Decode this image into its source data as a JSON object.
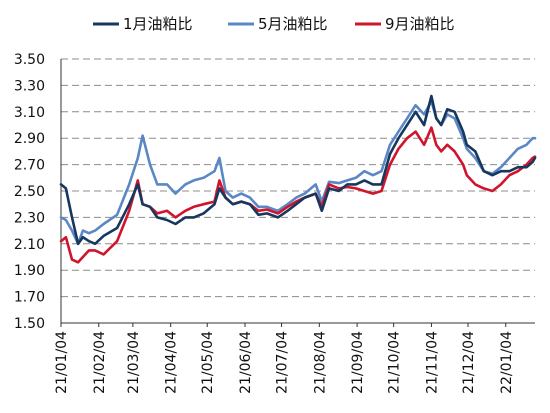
{
  "chart_data": {
    "type": "line",
    "title": "",
    "xlabel": "",
    "ylabel": "",
    "ylim": [
      1.5,
      3.5
    ],
    "y_ticks": [
      "3.50",
      "3.30",
      "3.10",
      "2.90",
      "2.70",
      "2.50",
      "2.30",
      "2.10",
      "1.90",
      "1.70",
      "1.50"
    ],
    "x_ticks": [
      "21/01/04",
      "21/02/04",
      "21/03/04",
      "21/04/04",
      "21/05/04",
      "21/06/04",
      "21/07/04",
      "21/08/04",
      "21/09/04",
      "21/10/04",
      "21/11/04",
      "21/12/04",
      "22/01/04"
    ],
    "grid": "horizontal dashed",
    "legend_position": "top",
    "x_range": [
      "2021-01-04",
      "2022-01-28"
    ],
    "series": [
      {
        "name": "1月油粕比",
        "color": "#17375e",
        "points": [
          [
            "2021-01-04",
            2.55
          ],
          [
            "2021-01-08",
            2.52
          ],
          [
            "2021-01-13",
            2.3
          ],
          [
            "2021-01-18",
            2.1
          ],
          [
            "2021-01-22",
            2.15
          ],
          [
            "2021-01-27",
            2.12
          ],
          [
            "2021-02-01",
            2.1
          ],
          [
            "2021-02-08",
            2.16
          ],
          [
            "2021-02-19",
            2.22
          ],
          [
            "2021-03-01",
            2.4
          ],
          [
            "2021-03-08",
            2.55
          ],
          [
            "2021-03-12",
            2.4
          ],
          [
            "2021-03-18",
            2.38
          ],
          [
            "2021-03-24",
            2.3
          ],
          [
            "2021-04-01",
            2.28
          ],
          [
            "2021-04-08",
            2.25
          ],
          [
            "2021-04-16",
            2.3
          ],
          [
            "2021-04-23",
            2.3
          ],
          [
            "2021-05-01",
            2.33
          ],
          [
            "2021-05-10",
            2.4
          ],
          [
            "2021-05-14",
            2.52
          ],
          [
            "2021-05-19",
            2.45
          ],
          [
            "2021-05-25",
            2.4
          ],
          [
            "2021-06-01",
            2.42
          ],
          [
            "2021-06-08",
            2.4
          ],
          [
            "2021-06-15",
            2.32
          ],
          [
            "2021-06-22",
            2.33
          ],
          [
            "2021-07-01",
            2.3
          ],
          [
            "2021-07-09",
            2.35
          ],
          [
            "2021-07-16",
            2.4
          ],
          [
            "2021-07-23",
            2.45
          ],
          [
            "2021-08-01",
            2.48
          ],
          [
            "2021-08-06",
            2.35
          ],
          [
            "2021-08-12",
            2.52
          ],
          [
            "2021-08-20",
            2.5
          ],
          [
            "2021-08-27",
            2.55
          ],
          [
            "2021-09-03",
            2.55
          ],
          [
            "2021-09-10",
            2.58
          ],
          [
            "2021-09-17",
            2.55
          ],
          [
            "2021-09-24",
            2.55
          ],
          [
            "2021-10-01",
            2.78
          ],
          [
            "2021-10-08",
            2.9
          ],
          [
            "2021-10-15",
            3.0
          ],
          [
            "2021-10-22",
            3.1
          ],
          [
            "2021-10-29",
            3.0
          ],
          [
            "2021-11-04",
            3.22
          ],
          [
            "2021-11-08",
            3.05
          ],
          [
            "2021-11-12",
            3.0
          ],
          [
            "2021-11-17",
            3.12
          ],
          [
            "2021-11-23",
            3.1
          ],
          [
            "2021-11-30",
            2.95
          ],
          [
            "2021-12-03",
            2.85
          ],
          [
            "2021-12-10",
            2.8
          ],
          [
            "2021-12-17",
            2.65
          ],
          [
            "2021-12-24",
            2.62
          ],
          [
            "2021-12-31",
            2.65
          ],
          [
            "2022-01-07",
            2.65
          ],
          [
            "2022-01-14",
            2.68
          ],
          [
            "2022-01-21",
            2.68
          ],
          [
            "2022-01-26",
            2.72
          ],
          [
            "2022-01-28",
            2.75
          ]
        ]
      },
      {
        "name": "5月油粕比",
        "color": "#5b87c5",
        "points": [
          [
            "2021-01-04",
            2.3
          ],
          [
            "2021-01-08",
            2.28
          ],
          [
            "2021-01-13",
            2.2
          ],
          [
            "2021-01-18",
            2.1
          ],
          [
            "2021-01-22",
            2.2
          ],
          [
            "2021-01-27",
            2.18
          ],
          [
            "2021-02-01",
            2.2
          ],
          [
            "2021-02-08",
            2.25
          ],
          [
            "2021-02-19",
            2.32
          ],
          [
            "2021-03-01",
            2.55
          ],
          [
            "2021-03-08",
            2.75
          ],
          [
            "2021-03-12",
            2.92
          ],
          [
            "2021-03-18",
            2.7
          ],
          [
            "2021-03-24",
            2.55
          ],
          [
            "2021-04-01",
            2.55
          ],
          [
            "2021-04-08",
            2.48
          ],
          [
            "2021-04-16",
            2.55
          ],
          [
            "2021-04-23",
            2.58
          ],
          [
            "2021-05-01",
            2.6
          ],
          [
            "2021-05-10",
            2.65
          ],
          [
            "2021-05-14",
            2.75
          ],
          [
            "2021-05-19",
            2.5
          ],
          [
            "2021-05-25",
            2.45
          ],
          [
            "2021-06-01",
            2.48
          ],
          [
            "2021-06-08",
            2.45
          ],
          [
            "2021-06-15",
            2.38
          ],
          [
            "2021-06-22",
            2.38
          ],
          [
            "2021-07-01",
            2.35
          ],
          [
            "2021-07-09",
            2.4
          ],
          [
            "2021-07-16",
            2.45
          ],
          [
            "2021-07-23",
            2.48
          ],
          [
            "2021-08-01",
            2.55
          ],
          [
            "2021-08-06",
            2.42
          ],
          [
            "2021-08-12",
            2.57
          ],
          [
            "2021-08-20",
            2.56
          ],
          [
            "2021-08-27",
            2.58
          ],
          [
            "2021-09-03",
            2.6
          ],
          [
            "2021-09-10",
            2.65
          ],
          [
            "2021-09-17",
            2.62
          ],
          [
            "2021-09-24",
            2.65
          ],
          [
            "2021-10-01",
            2.85
          ],
          [
            "2021-10-08",
            2.95
          ],
          [
            "2021-10-15",
            3.05
          ],
          [
            "2021-10-22",
            3.15
          ],
          [
            "2021-10-29",
            3.08
          ],
          [
            "2021-11-04",
            3.18
          ],
          [
            "2021-11-08",
            3.05
          ],
          [
            "2021-11-12",
            3.0
          ],
          [
            "2021-11-17",
            3.08
          ],
          [
            "2021-11-23",
            3.05
          ],
          [
            "2021-11-30",
            2.9
          ],
          [
            "2021-12-03",
            2.82
          ],
          [
            "2021-12-10",
            2.75
          ],
          [
            "2021-12-17",
            2.65
          ],
          [
            "2021-12-24",
            2.63
          ],
          [
            "2021-12-31",
            2.68
          ],
          [
            "2022-01-07",
            2.75
          ],
          [
            "2022-01-14",
            2.82
          ],
          [
            "2022-01-21",
            2.85
          ],
          [
            "2022-01-26",
            2.9
          ],
          [
            "2022-01-28",
            2.9
          ]
        ]
      },
      {
        "name": "9月油粕比",
        "color": "#d0142c",
        "points": [
          [
            "2021-01-04",
            2.12
          ],
          [
            "2021-01-08",
            2.15
          ],
          [
            "2021-01-13",
            1.98
          ],
          [
            "2021-01-18",
            1.96
          ],
          [
            "2021-01-22",
            2.0
          ],
          [
            "2021-01-27",
            2.05
          ],
          [
            "2021-02-01",
            2.05
          ],
          [
            "2021-02-08",
            2.02
          ],
          [
            "2021-02-19",
            2.12
          ],
          [
            "2021-03-01",
            2.35
          ],
          [
            "2021-03-08",
            2.58
          ],
          [
            "2021-03-12",
            2.4
          ],
          [
            "2021-03-18",
            2.38
          ],
          [
            "2021-03-24",
            2.33
          ],
          [
            "2021-04-01",
            2.35
          ],
          [
            "2021-04-08",
            2.3
          ],
          [
            "2021-04-16",
            2.35
          ],
          [
            "2021-04-23",
            2.38
          ],
          [
            "2021-05-01",
            2.4
          ],
          [
            "2021-05-10",
            2.42
          ],
          [
            "2021-05-14",
            2.58
          ],
          [
            "2021-05-19",
            2.45
          ],
          [
            "2021-05-25",
            2.4
          ],
          [
            "2021-06-01",
            2.42
          ],
          [
            "2021-06-08",
            2.4
          ],
          [
            "2021-06-15",
            2.35
          ],
          [
            "2021-06-22",
            2.36
          ],
          [
            "2021-07-01",
            2.33
          ],
          [
            "2021-07-09",
            2.38
          ],
          [
            "2021-07-16",
            2.42
          ],
          [
            "2021-07-23",
            2.45
          ],
          [
            "2021-08-01",
            2.48
          ],
          [
            "2021-08-06",
            2.38
          ],
          [
            "2021-08-12",
            2.55
          ],
          [
            "2021-08-20",
            2.52
          ],
          [
            "2021-08-27",
            2.53
          ],
          [
            "2021-09-03",
            2.52
          ],
          [
            "2021-09-10",
            2.5
          ],
          [
            "2021-09-17",
            2.48
          ],
          [
            "2021-09-24",
            2.5
          ],
          [
            "2021-10-01",
            2.7
          ],
          [
            "2021-10-08",
            2.82
          ],
          [
            "2021-10-15",
            2.9
          ],
          [
            "2021-10-22",
            2.95
          ],
          [
            "2021-10-29",
            2.85
          ],
          [
            "2021-11-04",
            2.98
          ],
          [
            "2021-11-08",
            2.85
          ],
          [
            "2021-11-12",
            2.8
          ],
          [
            "2021-11-17",
            2.85
          ],
          [
            "2021-11-23",
            2.8
          ],
          [
            "2021-11-30",
            2.7
          ],
          [
            "2021-12-03",
            2.62
          ],
          [
            "2021-12-10",
            2.55
          ],
          [
            "2021-12-17",
            2.52
          ],
          [
            "2021-12-24",
            2.5
          ],
          [
            "2021-12-31",
            2.55
          ],
          [
            "2022-01-07",
            2.62
          ],
          [
            "2022-01-14",
            2.65
          ],
          [
            "2022-01-21",
            2.7
          ],
          [
            "2022-01-26",
            2.75
          ],
          [
            "2022-01-28",
            2.76
          ]
        ]
      }
    ]
  }
}
